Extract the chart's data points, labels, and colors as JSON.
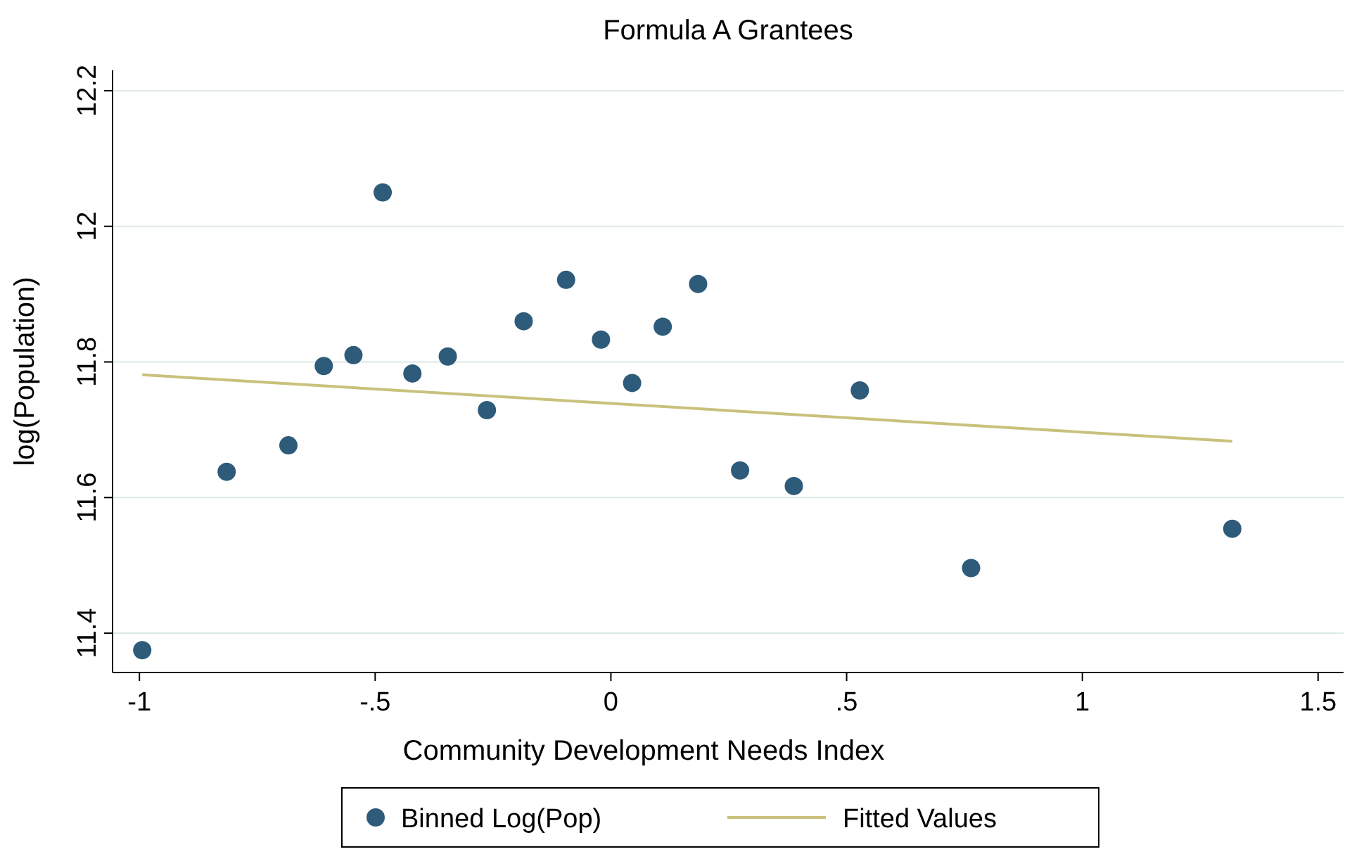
{
  "chart_data": {
    "type": "scatter",
    "title": "Formula A Grantees",
    "xlabel": "Community Development Needs Index",
    "ylabel": "log(Population)",
    "xlim": [
      -1.057,
      1.554
    ],
    "ylim": [
      11.342,
      12.23
    ],
    "xticks": [
      {
        "value": -1,
        "label": "-1"
      },
      {
        "value": -0.5,
        "label": "-.5"
      },
      0,
      {
        "value": 0.5,
        "label": ".5"
      },
      1,
      1.5
    ],
    "yticks": [
      11.4,
      11.6,
      11.8,
      12,
      12.2
    ],
    "grid": "y",
    "legend": "bottom",
    "series": [
      {
        "name": "Binned Log(Pop)",
        "marker": "circle",
        "color": "#2e5b79",
        "x": [
          -0.994,
          -0.815,
          -0.684,
          -0.609,
          -0.546,
          -0.484,
          -0.421,
          -0.346,
          -0.263,
          -0.185,
          -0.095,
          -0.021,
          0.045,
          0.11,
          0.185,
          0.274,
          0.388,
          0.528,
          0.764,
          1.318
        ],
        "values": [
          11.375,
          11.638,
          11.677,
          11.794,
          11.81,
          12.05,
          11.783,
          11.808,
          11.729,
          11.86,
          11.921,
          11.833,
          11.769,
          11.852,
          11.915,
          11.64,
          11.617,
          11.758,
          11.496,
          11.554
        ]
      },
      {
        "name": "Fitted Values",
        "type": "line",
        "color": "#c9c17c",
        "x": [
          -0.994,
          1.318
        ],
        "values": [
          11.781,
          11.683
        ]
      }
    ]
  }
}
